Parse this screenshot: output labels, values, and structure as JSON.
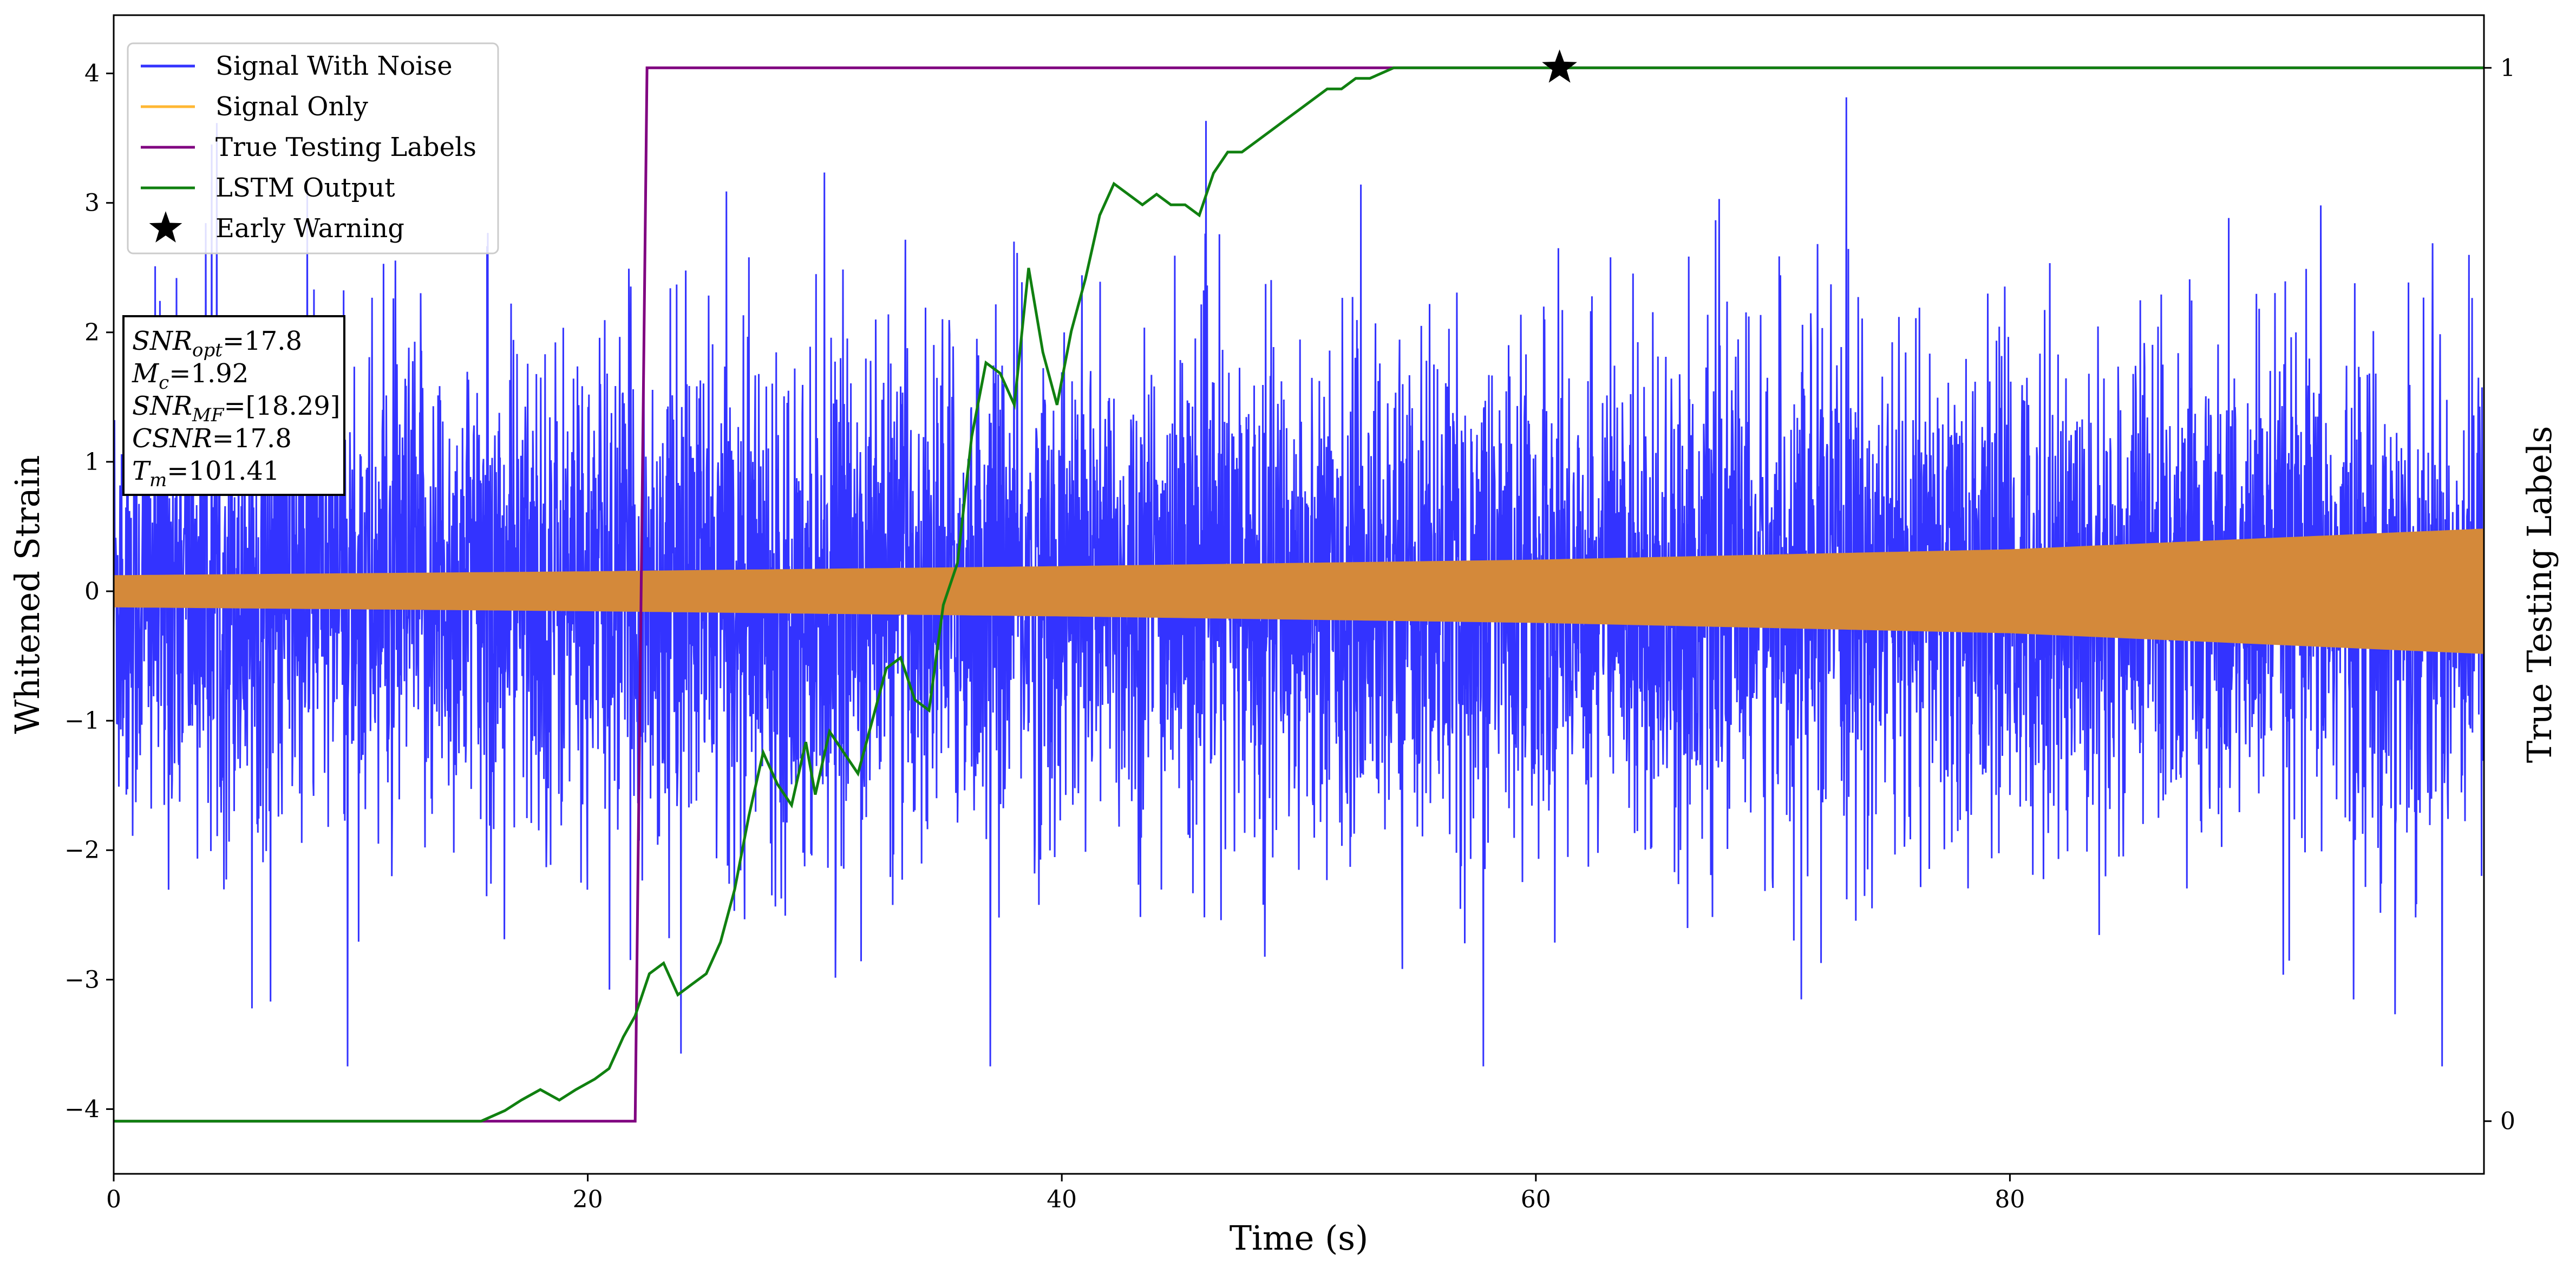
{
  "chart_data": {
    "type": "line",
    "xlabel": "Time (s)",
    "ylabel": "Whitened Strain",
    "y2label": "True Testing Labels",
    "xlim": [
      0,
      100
    ],
    "ylim": [
      -4.5,
      4.45
    ],
    "y2lim": [
      -0.05,
      1.05
    ],
    "x_ticks": [
      0,
      20,
      40,
      60,
      80
    ],
    "y_ticks": [
      -4,
      -3,
      -2,
      -1,
      0,
      1,
      2,
      3,
      4
    ],
    "y_tick_labels": [
      "−4",
      "−3",
      "−2",
      "−1",
      "0",
      "1",
      "2",
      "3",
      "4"
    ],
    "y2_ticks": [
      0,
      1
    ],
    "legend_position": "top-left",
    "series": [
      {
        "name": "Signal With Noise",
        "color": "#3333ff",
        "axis": "left",
        "description_values": {
          "amplitude_core": 1.2,
          "max": 3.97,
          "min": -3.67
        }
      },
      {
        "name": "Signal Only",
        "color": "#d4893a",
        "legend_color": "#ffb733",
        "axis": "left",
        "envelope": {
          "x": [
            0,
            20,
            40,
            60,
            80,
            100
          ],
          "amplitude": [
            0.12,
            0.15,
            0.19,
            0.24,
            0.32,
            0.48
          ]
        }
      },
      {
        "name": "True Testing Labels",
        "color": "#800080",
        "axis": "right",
        "x": [
          0,
          22.0,
          22.5,
          100
        ],
        "y": [
          0,
          0,
          1,
          1
        ]
      },
      {
        "name": "LSTM Output",
        "color": "#108010",
        "axis": "right",
        "x": [
          0,
          15.5,
          16.5,
          17.2,
          18.0,
          18.8,
          19.5,
          20.3,
          20.9,
          21.5,
          22.0,
          22.6,
          23.2,
          23.8,
          24.4,
          25.0,
          25.6,
          26.2,
          26.8,
          27.4,
          28.0,
          28.6,
          29.2,
          29.6,
          30.2,
          30.8,
          31.4,
          32.0,
          32.6,
          33.2,
          33.8,
          34.4,
          35.0,
          35.6,
          36.2,
          36.8,
          37.4,
          38.0,
          38.6,
          39.2,
          39.8,
          40.4,
          41.0,
          41.6,
          42.2,
          42.8,
          43.4,
          44.0,
          44.6,
          45.2,
          45.8,
          46.4,
          47.0,
          47.6,
          48.2,
          48.8,
          49.4,
          50.0,
          50.6,
          51.2,
          51.8,
          52.4,
          53.0,
          54.0,
          55.0,
          56.0,
          57.0,
          58.0,
          59.0,
          60.0,
          61.0,
          62.0,
          100
        ],
        "y": [
          0,
          0,
          0.01,
          0.02,
          0.03,
          0.02,
          0.03,
          0.04,
          0.05,
          0.08,
          0.1,
          0.14,
          0.15,
          0.12,
          0.13,
          0.14,
          0.17,
          0.22,
          0.29,
          0.35,
          0.32,
          0.3,
          0.36,
          0.31,
          0.37,
          0.35,
          0.33,
          0.38,
          0.43,
          0.44,
          0.4,
          0.39,
          0.49,
          0.53,
          0.65,
          0.72,
          0.71,
          0.68,
          0.81,
          0.73,
          0.68,
          0.75,
          0.8,
          0.86,
          0.89,
          0.88,
          0.87,
          0.88,
          0.87,
          0.87,
          0.86,
          0.9,
          0.92,
          0.92,
          0.93,
          0.94,
          0.95,
          0.96,
          0.97,
          0.98,
          0.98,
          0.99,
          0.99,
          1.0,
          1.0,
          1.0,
          1.0,
          1.0,
          1.0,
          1.0,
          1.0,
          1.0,
          1.0
        ]
      },
      {
        "name": "Early Warning",
        "color": "#000000",
        "marker": "star",
        "axis": "right",
        "x": [
          61.0
        ],
        "y": [
          1.0
        ]
      }
    ]
  },
  "info_box": {
    "lines": [
      {
        "label": "SNR",
        "sub": "opt",
        "value": "=17.8"
      },
      {
        "label": "M",
        "sub": "c",
        "value": "=1.92"
      },
      {
        "label": "SNR",
        "sub": "MF",
        "value": "=[18.29]"
      },
      {
        "label": "CSNR",
        "sub": "",
        "value": "=17.8"
      },
      {
        "label": "T",
        "sub": "m",
        "value": "=101.41"
      }
    ]
  }
}
